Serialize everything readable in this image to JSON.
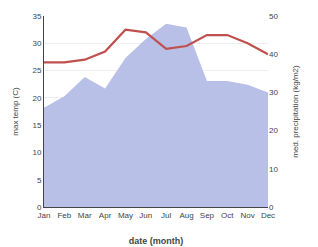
{
  "chart_data": {
    "type": "line",
    "xlabel": "date (month)",
    "ylabel": "max temp (C)",
    "y2label": "med. precipitation (kg/m2)",
    "categories": [
      "Jan",
      "Feb",
      "Mar",
      "Apr",
      "May",
      "Jun",
      "Jul",
      "Aug",
      "Sep",
      "Oct",
      "Nov",
      "Dec"
    ],
    "series": [
      {
        "type": "area",
        "axis": "y2",
        "color": "#b8c0e8",
        "values": [
          26,
          29,
          34,
          31,
          39,
          44,
          48,
          47,
          33,
          33,
          32,
          30
        ]
      },
      {
        "type": "line",
        "color": "#c0504d",
        "values": [
          26.5,
          26.5,
          27.0,
          28.5,
          32.5,
          32.0,
          29.0,
          29.5,
          31.5,
          31.5,
          30.0,
          28.0
        ]
      }
    ],
    "ylim": [
      0,
      35
    ],
    "yticks": [
      0,
      5,
      10,
      15,
      20,
      25,
      30,
      35
    ],
    "y2lim": [
      0,
      50
    ],
    "y2ticks": [
      0,
      10,
      20,
      30,
      40,
      50
    ],
    "grid": true
  }
}
